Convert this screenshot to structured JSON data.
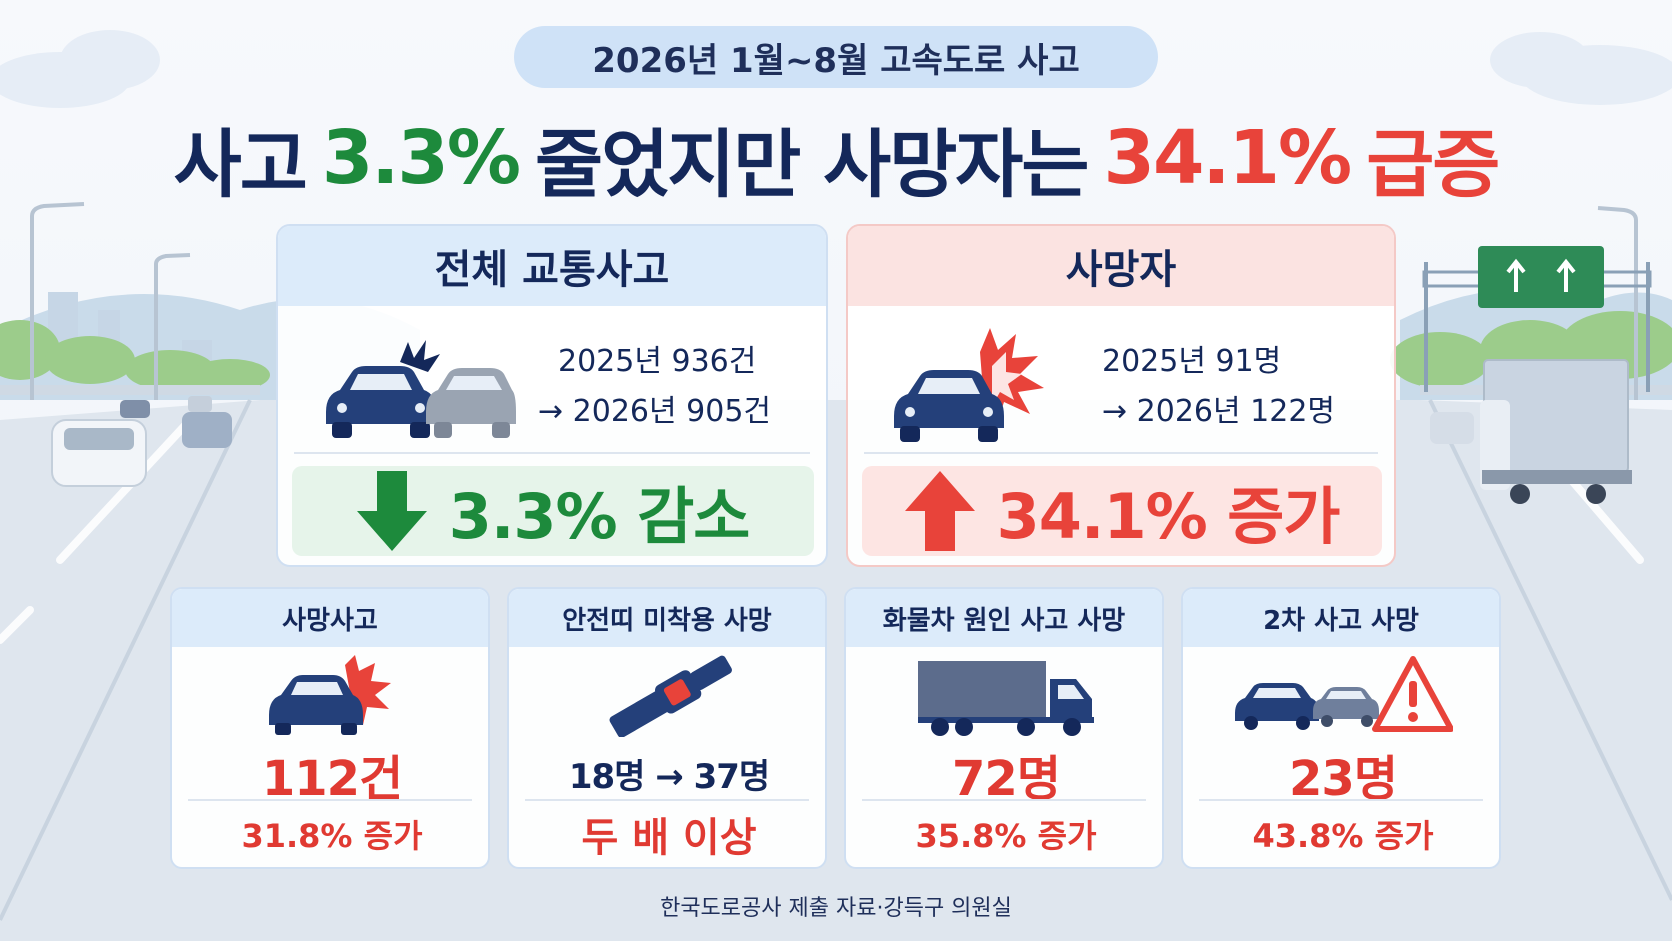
{
  "header": {
    "period": "2026년 1월~8월 고속도로 사고",
    "headline": {
      "part1": "사고",
      "accidents_rate": "3.3%",
      "part2": "줄었지만 사망자는",
      "deaths_rate": "34.1%",
      "part3": "급증"
    }
  },
  "cards": {
    "accidents": {
      "title": "전체 교통사고",
      "line1": "2025년 936건",
      "line2": "→ 2026년 905건",
      "result": "3.3% 감소",
      "color": "#1d8a3c"
    },
    "deaths": {
      "title": "사망자",
      "line1": "2025년 91명",
      "line2": "→ 2026년 122명",
      "result": "34.1% 증가",
      "color": "#e8433a"
    }
  },
  "stats": [
    {
      "title": "사망사고",
      "value": "112건",
      "change": "31.8% 증가"
    },
    {
      "title": "안전띠 미착용 사망",
      "value": "18명 → 37명",
      "change": "두 배 이상"
    },
    {
      "title": "화물차 원인 사고 사망",
      "value": "72명",
      "change": "35.8% 증가"
    },
    {
      "title": "2차 사고 사망",
      "value": "23명",
      "change": "43.8% 증가"
    }
  ],
  "source": "한국도로공사 제출 자료·강득구 의원실",
  "icons": {
    "accident_cars": "car-crash-icon",
    "crash_car": "car-crash-icon",
    "down": "arrow-down-icon",
    "up": "arrow-up-icon",
    "seatbelt": "seatbelt-icon",
    "truck": "truck-icon",
    "secondary": "warning-triangle-icon",
    "sign": "highway-sign-icon"
  }
}
